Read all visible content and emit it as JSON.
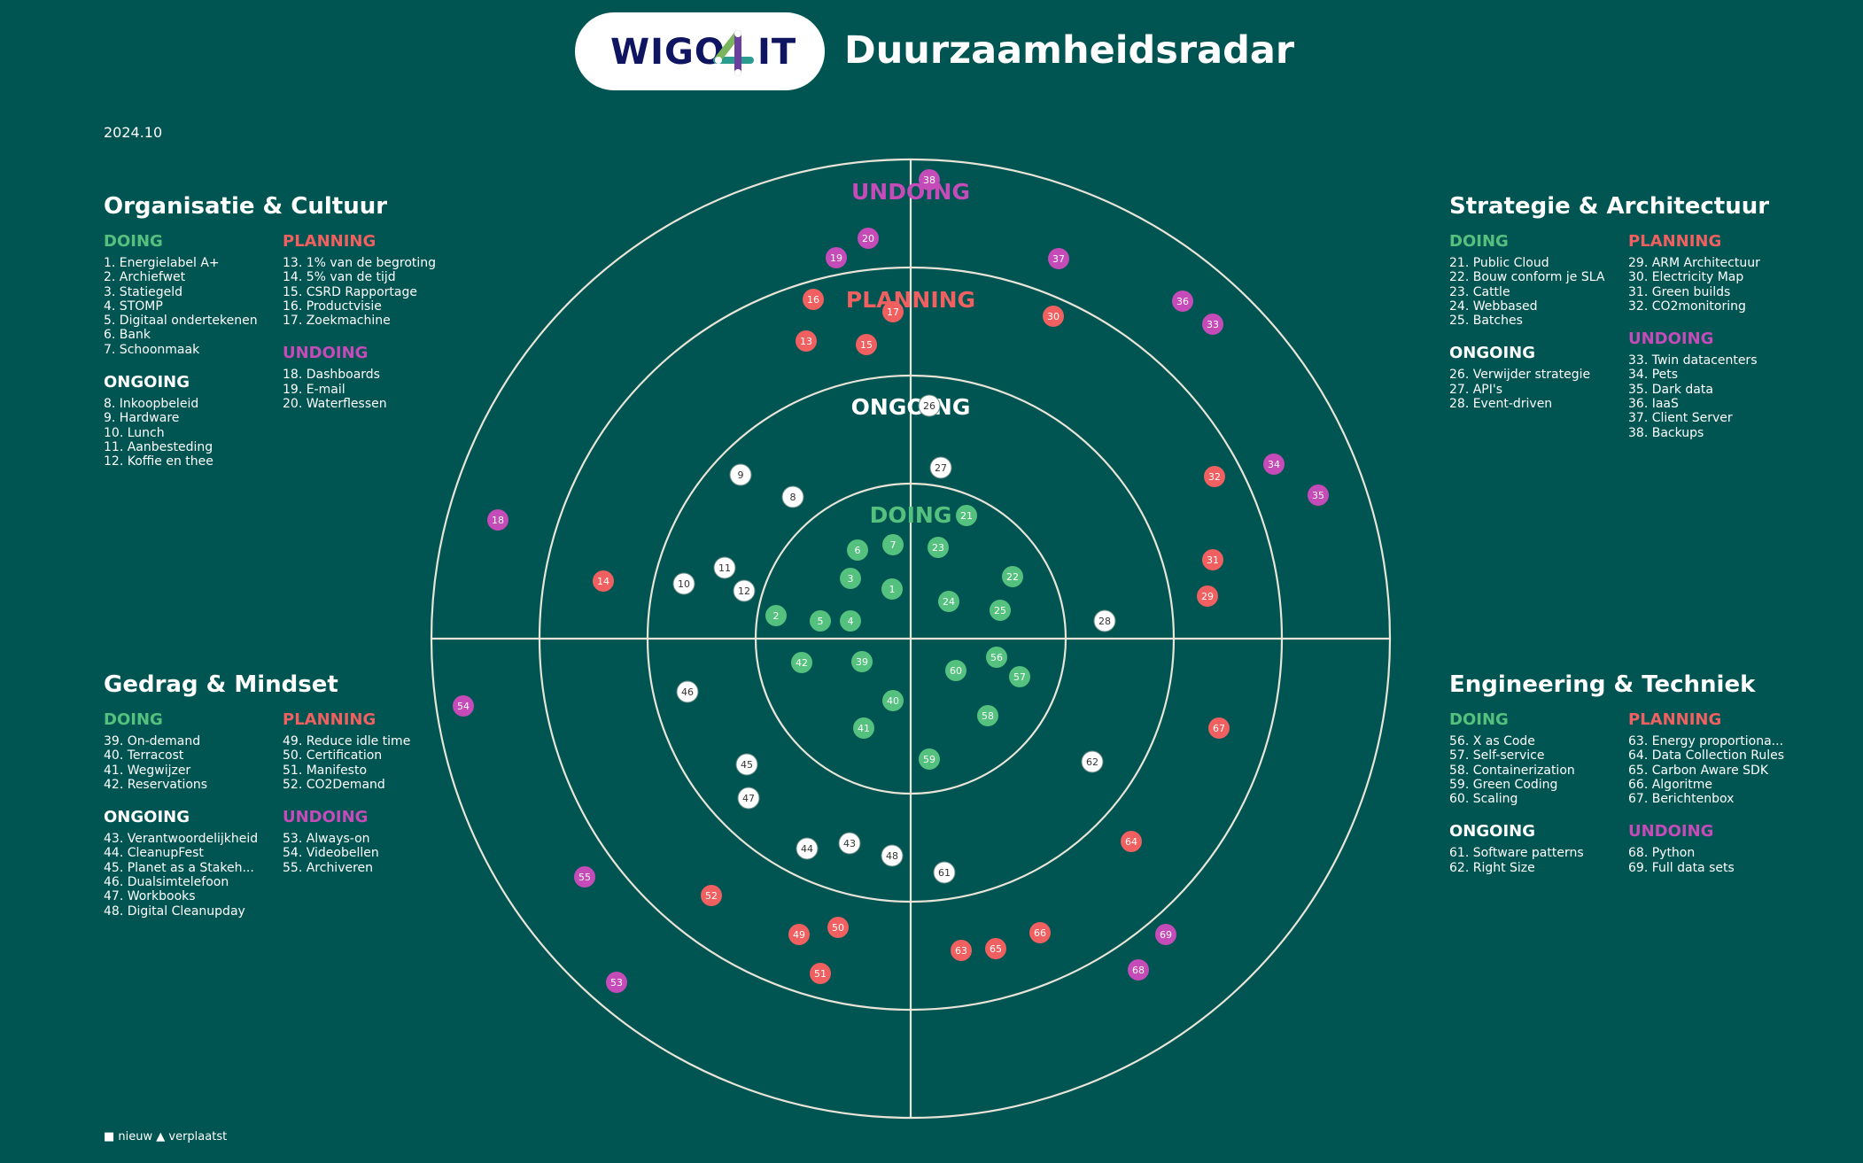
{
  "header": {
    "logo_left": "WIGO",
    "logo_right": "IT",
    "title": "Duurzaamheidsradar"
  },
  "version": "2024.10",
  "legend": "■ nieuw ▲ verplaatst",
  "colors": {
    "background": "#005552",
    "doing": "#54c27e",
    "planning": "#f06060",
    "undoing": "#c44bb8",
    "ongoing": "#ffffff",
    "logo_navy": "#0f1560"
  },
  "rings": {
    "doing": "DOING",
    "ongoing": "ONGOING",
    "planning": "PLANNING",
    "undoing": "UNDOING"
  },
  "quadrants": {
    "org": {
      "title": "Organisatie & Cultuur",
      "doing": {
        "label": "DOING",
        "items": [
          "1. Energielabel A+",
          "2. Archiefwet",
          "3. Statiegeld",
          "4. STOMP",
          "5. Digitaal ondertekenen",
          "6. Bank",
          "7. Schoonmaak"
        ]
      },
      "ongoing": {
        "label": "ONGOING",
        "items": [
          "8. Inkoopbeleid",
          "9. Hardware",
          "10. Lunch",
          "11. Aanbesteding",
          "12. Koffie en thee"
        ]
      },
      "planning": {
        "label": "PLANNING",
        "items": [
          "13. 1% van de begroting",
          "14. 5% van de tijd",
          "15. CSRD Rapportage",
          "16. Productvisie",
          "17. Zoekmachine"
        ]
      },
      "undoing": {
        "label": "UNDOING",
        "items": [
          "18. Dashboards",
          "19. E-mail",
          "20. Waterflessen"
        ]
      }
    },
    "strat": {
      "title": "Strategie & Architectuur",
      "doing": {
        "label": "DOING",
        "items": [
          "21. Public Cloud",
          "22. Bouw conform je SLA",
          "23. Cattle",
          "24. Webbased",
          "25. Batches"
        ]
      },
      "ongoing": {
        "label": "ONGOING",
        "items": [
          "26. Verwijder strategie",
          "27. API's",
          "28. Event-driven"
        ]
      },
      "planning": {
        "label": "PLANNING",
        "items": [
          "29. ARM Architectuur",
          "30. Electricity Map",
          "31. Green builds",
          "32. CO2monitoring"
        ]
      },
      "undoing": {
        "label": "UNDOING",
        "items": [
          "33. Twin datacenters",
          "34. Pets",
          "35. Dark data",
          "36. IaaS",
          "37. Client Server",
          "38. Backups"
        ]
      }
    },
    "gedrag": {
      "title": "Gedrag & Mindset",
      "doing": {
        "label": "DOING",
        "items": [
          "39. On-demand",
          "40. Terracost",
          "41. Wegwijzer",
          "42. Reservations"
        ]
      },
      "ongoing": {
        "label": "ONGOING",
        "items": [
          "43. Verantwoordelijkheid",
          "44. CleanupFest",
          "45. Planet as a Stakeh...",
          "46. Dualsimtelefoon",
          "47. Workbooks",
          "48. Digital Cleanupday"
        ]
      },
      "planning": {
        "label": "PLANNING",
        "items": [
          "49. Reduce idle time",
          "50. Certification",
          "51. Manifesto",
          "52. CO2Demand"
        ]
      },
      "undoing": {
        "label": "UNDOING",
        "items": [
          "53. Always-on",
          "54. Videobellen",
          "55. Archiveren"
        ]
      }
    },
    "eng": {
      "title": "Engineering & Techniek",
      "doing": {
        "label": "DOING",
        "items": [
          "56. X as Code",
          "57. Self-service",
          "58. Containerization",
          "59. Green Coding",
          "60. Scaling"
        ]
      },
      "ongoing": {
        "label": "ONGOING",
        "items": [
          "61. Software patterns",
          "62. Right Size"
        ]
      },
      "planning": {
        "label": "PLANNING",
        "items": [
          "63. Energy proportiona...",
          "64. Data Collection Rules",
          "65. Carbon Aware SDK",
          "66. Algoritme",
          "67. Berichtenbox"
        ]
      },
      "undoing": {
        "label": "UNDOING",
        "items": [
          "68. Python",
          "69. Full data sets"
        ]
      }
    }
  },
  "blips": [
    {
      "n": "1",
      "r": "doing"
    },
    {
      "n": "2",
      "r": "doing"
    },
    {
      "n": "3",
      "r": "doing"
    },
    {
      "n": "4",
      "r": "doing"
    },
    {
      "n": "5",
      "r": "doing"
    },
    {
      "n": "6",
      "r": "doing"
    },
    {
      "n": "7",
      "r": "doing"
    },
    {
      "n": "8",
      "r": "ongoing"
    },
    {
      "n": "9",
      "r": "ongoing"
    },
    {
      "n": "10",
      "r": "ongoing"
    },
    {
      "n": "11",
      "r": "ongoing"
    },
    {
      "n": "12",
      "r": "ongoing"
    },
    {
      "n": "13",
      "r": "planning"
    },
    {
      "n": "14",
      "r": "planning"
    },
    {
      "n": "15",
      "r": "planning"
    },
    {
      "n": "16",
      "r": "planning"
    },
    {
      "n": "17",
      "r": "planning"
    },
    {
      "n": "18",
      "r": "undoing"
    },
    {
      "n": "19",
      "r": "undoing"
    },
    {
      "n": "20",
      "r": "undoing"
    },
    {
      "n": "21",
      "r": "doing"
    },
    {
      "n": "22",
      "r": "doing"
    },
    {
      "n": "23",
      "r": "doing"
    },
    {
      "n": "24",
      "r": "doing"
    },
    {
      "n": "25",
      "r": "doing"
    },
    {
      "n": "26",
      "r": "ongoing"
    },
    {
      "n": "27",
      "r": "ongoing"
    },
    {
      "n": "28",
      "r": "ongoing"
    },
    {
      "n": "29",
      "r": "planning"
    },
    {
      "n": "30",
      "r": "planning"
    },
    {
      "n": "31",
      "r": "planning"
    },
    {
      "n": "32",
      "r": "planning"
    },
    {
      "n": "33",
      "r": "undoing"
    },
    {
      "n": "34",
      "r": "undoing"
    },
    {
      "n": "35",
      "r": "undoing"
    },
    {
      "n": "36",
      "r": "undoing"
    },
    {
      "n": "37",
      "r": "undoing"
    },
    {
      "n": "38",
      "r": "undoing"
    },
    {
      "n": "39",
      "r": "doing"
    },
    {
      "n": "40",
      "r": "doing"
    },
    {
      "n": "41",
      "r": "doing"
    },
    {
      "n": "42",
      "r": "doing"
    },
    {
      "n": "43",
      "r": "ongoing"
    },
    {
      "n": "44",
      "r": "ongoing"
    },
    {
      "n": "45",
      "r": "ongoing"
    },
    {
      "n": "46",
      "r": "ongoing"
    },
    {
      "n": "47",
      "r": "ongoing"
    },
    {
      "n": "48",
      "r": "ongoing"
    },
    {
      "n": "49",
      "r": "planning"
    },
    {
      "n": "50",
      "r": "planning"
    },
    {
      "n": "51",
      "r": "planning"
    },
    {
      "n": "52",
      "r": "planning"
    },
    {
      "n": "53",
      "r": "undoing"
    },
    {
      "n": "54",
      "r": "undoing"
    },
    {
      "n": "55",
      "r": "undoing"
    },
    {
      "n": "56",
      "r": "doing"
    },
    {
      "n": "57",
      "r": "doing"
    },
    {
      "n": "58",
      "r": "doing"
    },
    {
      "n": "59",
      "r": "doing"
    },
    {
      "n": "60",
      "r": "doing"
    },
    {
      "n": "61",
      "r": "ongoing"
    },
    {
      "n": "62",
      "r": "ongoing"
    },
    {
      "n": "63",
      "r": "planning"
    },
    {
      "n": "64",
      "r": "planning"
    },
    {
      "n": "65",
      "r": "planning"
    },
    {
      "n": "66",
      "r": "planning"
    },
    {
      "n": "67",
      "r": "planning"
    },
    {
      "n": "68",
      "r": "undoing"
    },
    {
      "n": "69",
      "r": "undoing"
    }
  ]
}
